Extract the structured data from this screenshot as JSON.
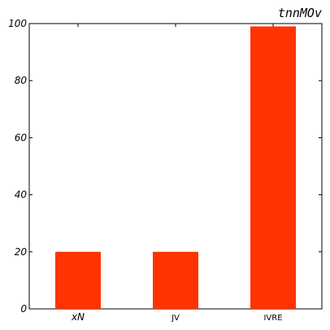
{
  "chart_data": {
    "type": "bar",
    "title": "tnnMOv",
    "xlabel": "",
    "ylabel": "",
    "categories": [
      "xN",
      "JV",
      "IVRE"
    ],
    "values": [
      20,
      20,
      99
    ],
    "ylim": [
      0,
      100
    ],
    "yticks": [
      0,
      20,
      40,
      60,
      80,
      100
    ],
    "grid": false,
    "legend": "none",
    "bar_color": "#ff3300"
  }
}
